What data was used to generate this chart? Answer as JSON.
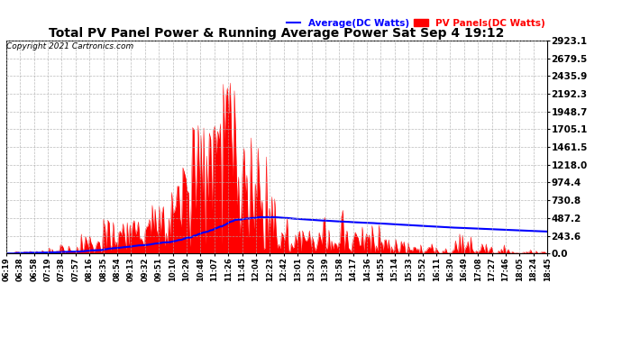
{
  "title": "Total PV Panel Power & Running Average Power Sat Sep 4 19:12",
  "copyright": "Copyright 2021 Cartronics.com",
  "legend_avg": "Average(DC Watts)",
  "legend_pv": "PV Panels(DC Watts)",
  "yticks": [
    0.0,
    243.6,
    487.2,
    730.8,
    974.4,
    1218.0,
    1461.5,
    1705.1,
    1948.7,
    2192.3,
    2435.9,
    2679.5,
    2923.1
  ],
  "ymax": 2923.1,
  "bg_color": "#ffffff",
  "grid_color": "#aaaaaa",
  "pv_color": "#ff0000",
  "avg_color": "#0000ff",
  "title_color": "#000000",
  "copyright_color": "#000000",
  "xtick_labels": [
    "06:19",
    "06:38",
    "06:58",
    "07:19",
    "07:38",
    "07:57",
    "08:16",
    "08:35",
    "08:54",
    "09:13",
    "09:32",
    "09:51",
    "10:10",
    "10:29",
    "10:48",
    "11:07",
    "11:26",
    "11:45",
    "12:04",
    "12:23",
    "12:42",
    "13:01",
    "13:20",
    "13:39",
    "13:58",
    "14:17",
    "14:36",
    "14:55",
    "15:14",
    "15:33",
    "15:52",
    "16:11",
    "16:30",
    "16:49",
    "17:08",
    "17:27",
    "17:46",
    "18:05",
    "18:24",
    "18:45"
  ]
}
